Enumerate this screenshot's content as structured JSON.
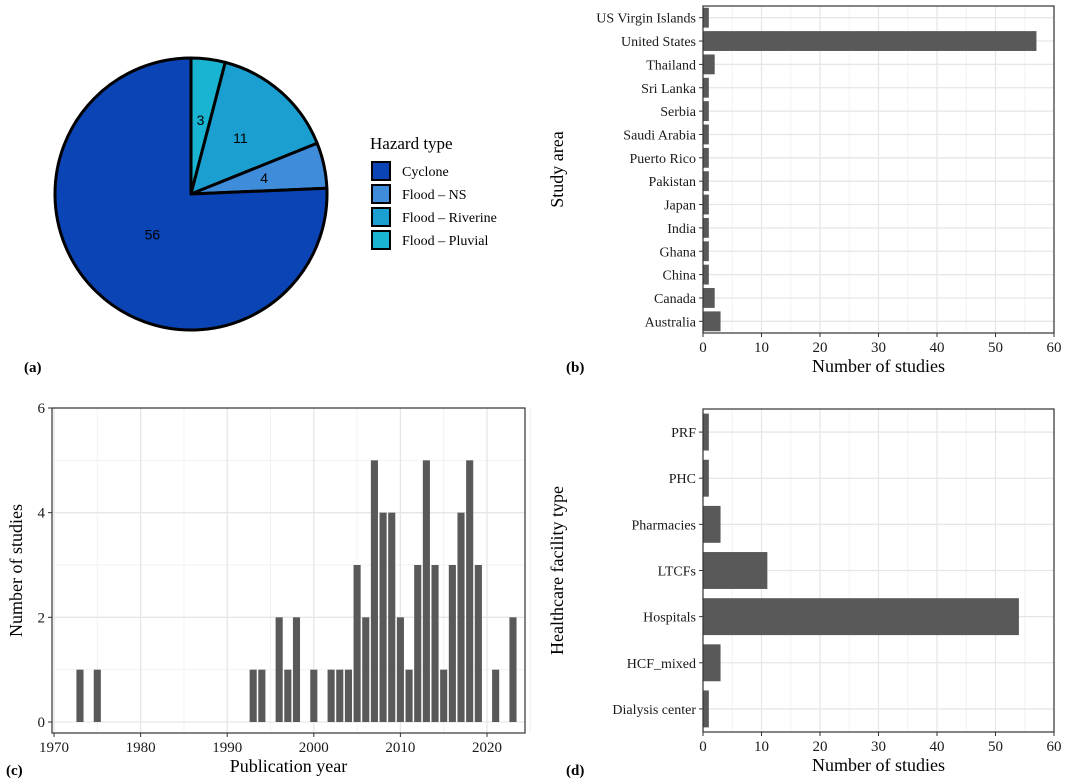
{
  "panel_labels": [
    "(a)",
    "(b)",
    "(c)",
    "(d)"
  ],
  "chart_data": [
    {
      "type": "pie",
      "panel": "(a)",
      "legend_title": "Hazard type",
      "legend_position": "right",
      "categories": [
        "Cyclone",
        "Flood – NS",
        "Flood – Riverine",
        "Flood – Pluvial"
      ],
      "values": [
        56,
        4,
        11,
        3
      ],
      "colors": [
        "#0b44b5",
        "#3f8cdb",
        "#1b9fd0",
        "#19b4d2"
      ]
    },
    {
      "type": "bar",
      "orientation": "horizontal",
      "panel": "(b)",
      "xlabel": "Number of studies",
      "ylabel": "Study area",
      "xlim": [
        0,
        60
      ],
      "xticks": [
        "0",
        "10",
        "20",
        "30",
        "40",
        "50",
        "60"
      ],
      "categories": [
        "US Virgin Islands",
        "United States",
        "Thailand",
        "Sri Lanka",
        "Serbia",
        "Saudi Arabia",
        "Puerto Rico",
        "Pakistan",
        "Japan",
        "India",
        "Ghana",
        "China",
        "Canada",
        "Australia"
      ],
      "values": [
        1,
        57,
        2,
        1,
        1,
        1,
        1,
        1,
        1,
        1,
        1,
        1,
        2,
        3
      ],
      "bar_color": "#595959",
      "grid": true
    },
    {
      "type": "bar",
      "orientation": "vertical",
      "panel": "(c)",
      "xlabel": "Publication year",
      "ylabel": "Number of studies",
      "xlim": [
        1970,
        2025
      ],
      "ylim": [
        0,
        6
      ],
      "xticks": [
        "1970",
        "1980",
        "1990",
        "2000",
        "2010",
        "2020"
      ],
      "yticks": [
        "0",
        "2",
        "4",
        "6"
      ],
      "x": [
        1973,
        1975,
        1993,
        1994,
        1996,
        1997,
        1998,
        2000,
        2002,
        2003,
        2004,
        2005,
        2006,
        2007,
        2008,
        2009,
        2010,
        2011,
        2012,
        2013,
        2014,
        2015,
        2016,
        2017,
        2018,
        2019,
        2021,
        2023
      ],
      "values": [
        1,
        1,
        1,
        1,
        2,
        1,
        2,
        1,
        1,
        1,
        1,
        3,
        2,
        5,
        4,
        4,
        2,
        1,
        3,
        5,
        3,
        1,
        3,
        4,
        5,
        3,
        1,
        2
      ],
      "bar_color": "#595959",
      "grid": true
    },
    {
      "type": "bar",
      "orientation": "horizontal",
      "panel": "(d)",
      "xlabel": "Number of studies",
      "ylabel": "Healthcare facility type",
      "xlim": [
        0,
        60
      ],
      "xticks": [
        "0",
        "10",
        "20",
        "30",
        "40",
        "50",
        "60"
      ],
      "categories": [
        "PRF",
        "PHC",
        "Pharmacies",
        "LTCFs",
        "Hospitals",
        "HCF_mixed",
        "Dialysis center"
      ],
      "values": [
        1,
        1,
        3,
        11,
        54,
        3,
        1
      ],
      "bar_color": "#595959",
      "grid": true
    }
  ]
}
